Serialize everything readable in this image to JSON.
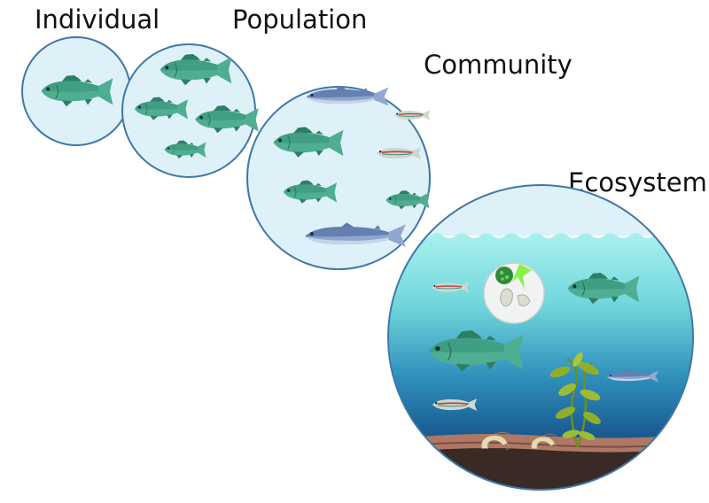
{
  "levels": [
    {
      "key": "individual",
      "label": "Individual"
    },
    {
      "key": "population",
      "label": "Population"
    },
    {
      "key": "community",
      "label": "Community"
    },
    {
      "key": "ecosystem",
      "label": "Ecosystem"
    }
  ],
  "colors": {
    "circle_fill": "#dff1f8",
    "circle_stroke": "#3f78a8",
    "sea_fish": "#4fae92",
    "sea_fish_dark": "#2f7d66",
    "salmon": "#8fa7cf",
    "salmon_dark": "#5f79a8",
    "minnow": "#c9d9d0",
    "water_top": "#8fe6ea",
    "water_mid": "#3aa9c6",
    "water_deep": "#123f74",
    "seabed": "#6a4b3f",
    "kelp": "#8fae2c",
    "plankton_green": "#2e8b3a",
    "plankton_lime": "#8cf04a"
  },
  "icons": [
    "fish-icon",
    "salmon-icon",
    "minnow-icon",
    "plankton-icon",
    "kelp-icon",
    "shrimp-icon"
  ]
}
